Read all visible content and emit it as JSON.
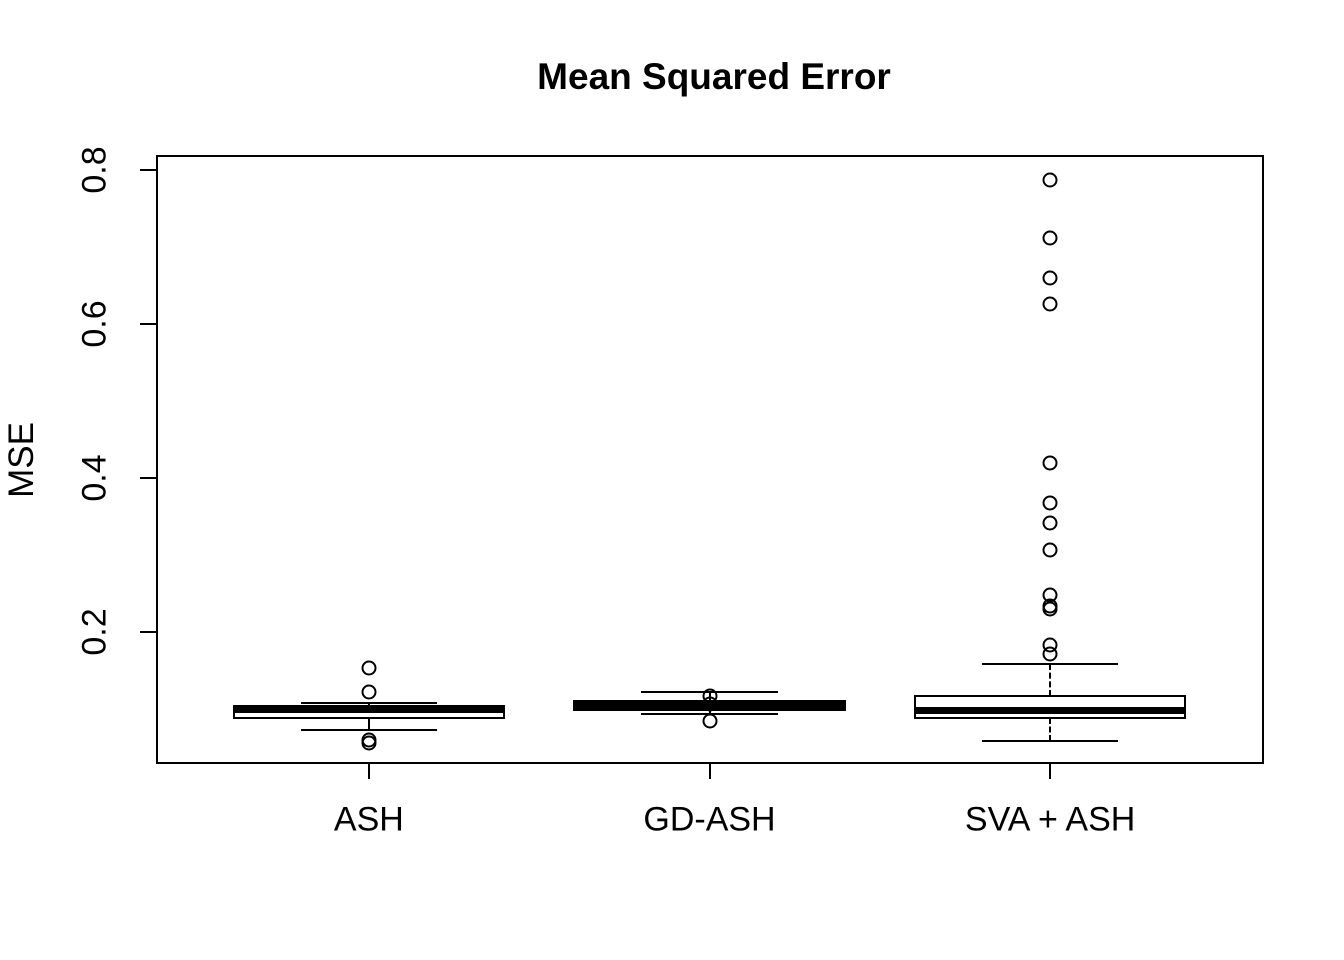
{
  "chart_data": {
    "type": "boxplot",
    "title": "Mean Squared Error",
    "ylabel": "MSE",
    "xlabel": "",
    "categories": [
      "ASH",
      "GD-ASH",
      "SVA + ASH"
    ],
    "ylim": [
      0.03,
      0.818
    ],
    "xlim": [
      0.375,
      3.625
    ],
    "grid": false,
    "legend": "none",
    "y_ticks": [
      {
        "value": 0.2,
        "label": "0.2"
      },
      {
        "value": 0.4,
        "label": "0.4"
      },
      {
        "value": 0.6,
        "label": "0.6"
      },
      {
        "value": 0.8,
        "label": "0.8"
      }
    ],
    "series": [
      {
        "name": "ASH",
        "x": 1,
        "median": 0.0995,
        "q1": 0.088,
        "q3": 0.104,
        "whisker_low": 0.073,
        "whisker_high": 0.108,
        "outliers": [
          0.153,
          0.122,
          0.06,
          0.056
        ]
      },
      {
        "name": "GD-ASH",
        "x": 2,
        "median": 0.1045,
        "q1": 0.099,
        "q3": 0.11,
        "whisker_low": 0.094,
        "whisker_high": 0.122,
        "outliers": [
          0.117,
          0.106,
          0.085
        ]
      },
      {
        "name": "SVA + ASH",
        "x": 3,
        "median": 0.098,
        "q1": 0.089,
        "q3": 0.117,
        "whisker_low": 0.059,
        "whisker_high": 0.158,
        "outliers": [
          0.787,
          0.711,
          0.66,
          0.626,
          0.419,
          0.368,
          0.341,
          0.306,
          0.248,
          0.234,
          0.23,
          0.183,
          0.172
        ]
      }
    ],
    "style": {
      "fg": "#000000",
      "bg": "#ffffff",
      "box_width_frac": 0.8,
      "staple_width_frac": 0.4
    }
  }
}
